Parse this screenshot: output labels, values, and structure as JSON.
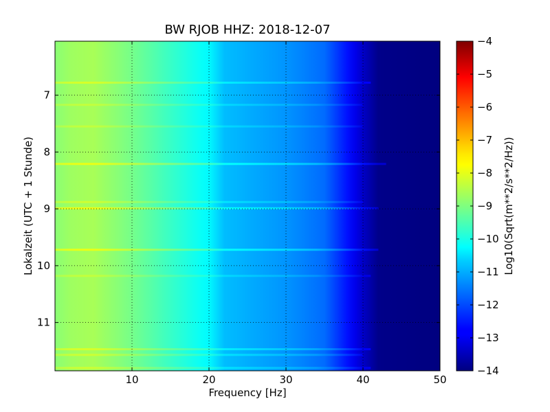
{
  "chart_data": {
    "type": "heatmap",
    "title": "BW RJOB HHZ: 2018-12-07",
    "xlabel": "Frequency [Hz]",
    "ylabel": "Lokalzeit (UTC + 1 Stunde)",
    "xlim": [
      0,
      50
    ],
    "ylim": [
      11.85,
      6.05
    ],
    "x_ticks": [
      10,
      20,
      30,
      40,
      50
    ],
    "x_tick_labels": [
      "10",
      "20",
      "30",
      "40",
      "50"
    ],
    "y_ticks": [
      7,
      8,
      9,
      10,
      11
    ],
    "y_tick_labels": [
      "7",
      "8",
      "9",
      "10",
      "11"
    ],
    "grid": true,
    "colorbar": {
      "label": "Log10(Sqrt(m**2/s**2/Hz))",
      "range": [
        -14,
        -4
      ],
      "ticks": [
        -4,
        -5,
        -6,
        -7,
        -8,
        -9,
        -10,
        -11,
        -12,
        -13,
        -14
      ],
      "tick_labels": [
        "−4",
        "−5",
        "−6",
        "−7",
        "−8",
        "−9",
        "−10",
        "−11",
        "−12",
        "−13",
        "−14"
      ],
      "colormap": "jet"
    },
    "spectrum_profile": [
      {
        "frequency": 0,
        "value": -8.9
      },
      {
        "frequency": 2,
        "value": -8.7
      },
      {
        "frequency": 5,
        "value": -8.6
      },
      {
        "frequency": 10,
        "value": -9.1
      },
      {
        "frequency": 15,
        "value": -9.7
      },
      {
        "frequency": 20,
        "value": -10.3
      },
      {
        "frequency": 22,
        "value": -10.9
      },
      {
        "frequency": 30,
        "value": -11.3
      },
      {
        "frequency": 35,
        "value": -11.7
      },
      {
        "frequency": 38,
        "value": -12.6
      },
      {
        "frequency": 40,
        "value": -13.3
      },
      {
        "frequency": 42,
        "value": -13.9
      },
      {
        "frequency": 50,
        "value": -14.0
      }
    ],
    "bright_bands": [
      {
        "time": 6.78,
        "value_offset": 0.5,
        "fmax": 41
      },
      {
        "time": 7.17,
        "value_offset": 0.3,
        "fmax": 40
      },
      {
        "time": 7.55,
        "value_offset": 0.3,
        "fmax": 40
      },
      {
        "time": 8.21,
        "value_offset": 0.7,
        "fmax": 43
      },
      {
        "time": 8.88,
        "value_offset": 0.4,
        "fmax": 40
      },
      {
        "time": 8.99,
        "value_offset": 0.7,
        "fmax": 42
      },
      {
        "time": 9.72,
        "value_offset": 0.7,
        "fmax": 42
      },
      {
        "time": 10.18,
        "value_offset": 0.3,
        "fmax": 41
      },
      {
        "time": 11.47,
        "value_offset": 0.5,
        "fmax": 41
      },
      {
        "time": 11.57,
        "value_offset": 0.4,
        "fmax": 40
      },
      {
        "time": 11.8,
        "value_offset": 0.4,
        "fmax": 41
      }
    ]
  }
}
